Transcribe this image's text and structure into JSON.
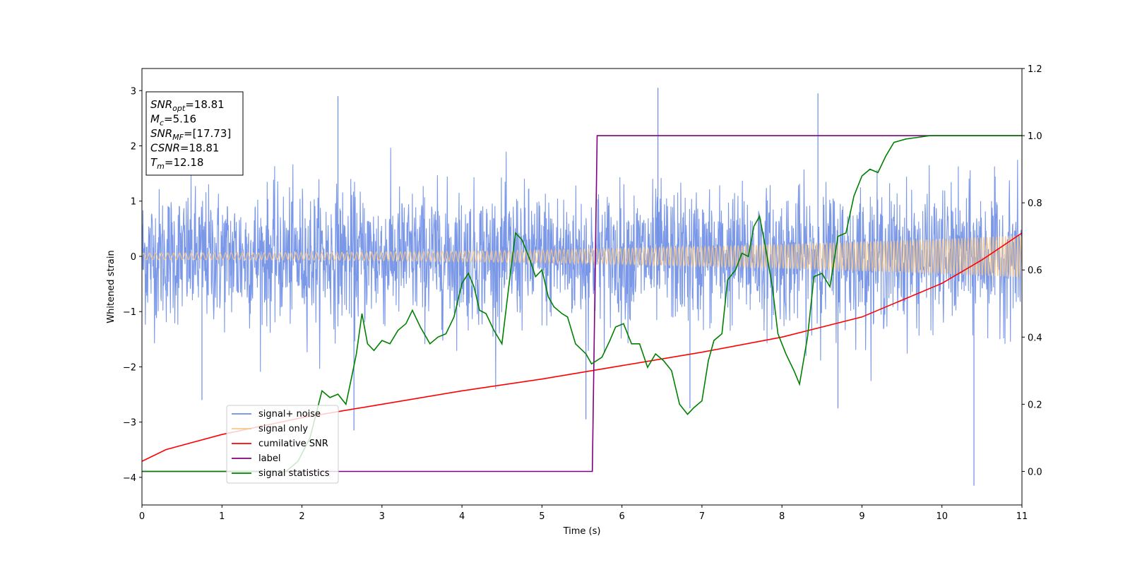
{
  "chart_data": {
    "type": "line",
    "title": "",
    "xlabel": "Time (s)",
    "ylabel": "Whitened strain",
    "xlim": [
      0,
      11
    ],
    "ylim_left": [
      -4.5,
      3.4
    ],
    "ylim_right": [
      -0.1,
      1.2
    ],
    "x_ticks": [
      "0",
      "1",
      "2",
      "3",
      "4",
      "5",
      "6",
      "7",
      "8",
      "9",
      "10",
      "11"
    ],
    "y_ticks_left": [
      "−4",
      "−3",
      "−2",
      "−1",
      "0",
      "1",
      "2",
      "3"
    ],
    "y_ticks_right": [
      "0.0",
      "0.2",
      "0.4",
      "0.6",
      "0.8",
      "1.0",
      "1.2"
    ],
    "grid": false,
    "legend_position": "lower-left",
    "annotation": {
      "lines": [
        {
          "sym": "SNR",
          "sub": "opt",
          "value": "=18.81"
        },
        {
          "sym": "M",
          "sub": "c",
          "value": "=5.16"
        },
        {
          "sym": "SNR",
          "sub": "MF",
          "value": "=[17.73]"
        },
        {
          "sym": "CSNR",
          "sub": "",
          "value": "=18.81"
        },
        {
          "sym": "T",
          "sub": "m",
          "value": "=12.18"
        }
      ]
    },
    "series": [
      {
        "name": "signal+ noise",
        "color": "#6b8ce6",
        "axis": "left",
        "kind": "noise",
        "noise_sigma": 0.8,
        "noise_peaks": [
          {
            "x": 2.45,
            "y": 2.9
          },
          {
            "x": 6.45,
            "y": 3.05
          },
          {
            "x": 8.45,
            "y": 2.95
          },
          {
            "x": 10.4,
            "y": -4.15
          },
          {
            "x": 2.65,
            "y": -3.15
          },
          {
            "x": 5.55,
            "y": -2.95
          },
          {
            "x": 0.75,
            "y": -2.6
          },
          {
            "x": 8.7,
            "y": -2.75
          },
          {
            "x": 6.85,
            "y": -2.75
          }
        ]
      },
      {
        "name": "signal only",
        "color": "#f5c78a",
        "axis": "left",
        "kind": "chirp",
        "amp_start": 0.06,
        "amp_end": 0.38
      },
      {
        "name": "cumilative SNR",
        "color": "#ff0000",
        "axis": "right",
        "x": [
          0,
          0.3,
          1,
          2,
          3,
          4,
          5,
          6,
          7,
          8,
          9,
          10,
          10.5,
          11
        ],
        "y": [
          0.03,
          0.065,
          0.11,
          0.16,
          0.2,
          0.24,
          0.275,
          0.315,
          0.355,
          0.4,
          0.46,
          0.56,
          0.63,
          0.71
        ]
      },
      {
        "name": "label",
        "color": "#800080",
        "axis": "right",
        "x": [
          0,
          5.63,
          5.69,
          11
        ],
        "y": [
          0,
          0,
          1,
          1
        ]
      },
      {
        "name": "signal statistics",
        "color": "#008000",
        "axis": "right",
        "x": [
          0,
          1.8,
          1.95,
          2.1,
          2.25,
          2.35,
          2.45,
          2.55,
          2.62,
          2.68,
          2.75,
          2.82,
          2.9,
          3.0,
          3.1,
          3.2,
          3.3,
          3.38,
          3.48,
          3.6,
          3.7,
          3.8,
          3.9,
          4.0,
          4.08,
          4.15,
          4.22,
          4.3,
          4.4,
          4.5,
          4.6,
          4.67,
          4.75,
          4.85,
          4.92,
          5.0,
          5.08,
          5.15,
          5.25,
          5.32,
          5.42,
          5.55,
          5.62,
          5.75,
          5.85,
          5.92,
          6.02,
          6.12,
          6.22,
          6.32,
          6.42,
          6.52,
          6.62,
          6.72,
          6.82,
          6.9,
          7.0,
          7.08,
          7.15,
          7.25,
          7.32,
          7.42,
          7.5,
          7.58,
          7.65,
          7.72,
          7.8,
          7.88,
          7.95,
          8.05,
          8.15,
          8.22,
          8.32,
          8.4,
          8.5,
          8.6,
          8.7,
          8.8,
          8.9,
          9.0,
          9.1,
          9.2,
          9.3,
          9.4,
          9.55,
          9.7,
          9.85,
          10.0,
          11
        ],
        "y": [
          0,
          0,
          0.03,
          0.1,
          0.24,
          0.22,
          0.23,
          0.2,
          0.28,
          0.35,
          0.47,
          0.38,
          0.36,
          0.39,
          0.38,
          0.42,
          0.44,
          0.48,
          0.43,
          0.38,
          0.4,
          0.41,
          0.46,
          0.56,
          0.59,
          0.55,
          0.48,
          0.47,
          0.42,
          0.38,
          0.58,
          0.71,
          0.69,
          0.63,
          0.58,
          0.6,
          0.52,
          0.49,
          0.47,
          0.46,
          0.38,
          0.35,
          0.32,
          0.34,
          0.39,
          0.43,
          0.44,
          0.38,
          0.38,
          0.31,
          0.35,
          0.33,
          0.3,
          0.2,
          0.17,
          0.19,
          0.21,
          0.33,
          0.39,
          0.41,
          0.57,
          0.6,
          0.65,
          0.64,
          0.73,
          0.76,
          0.66,
          0.55,
          0.41,
          0.35,
          0.3,
          0.26,
          0.4,
          0.58,
          0.59,
          0.55,
          0.7,
          0.71,
          0.82,
          0.88,
          0.9,
          0.89,
          0.94,
          0.98,
          0.99,
          0.995,
          1.0,
          1.0,
          1.0
        ]
      }
    ]
  }
}
